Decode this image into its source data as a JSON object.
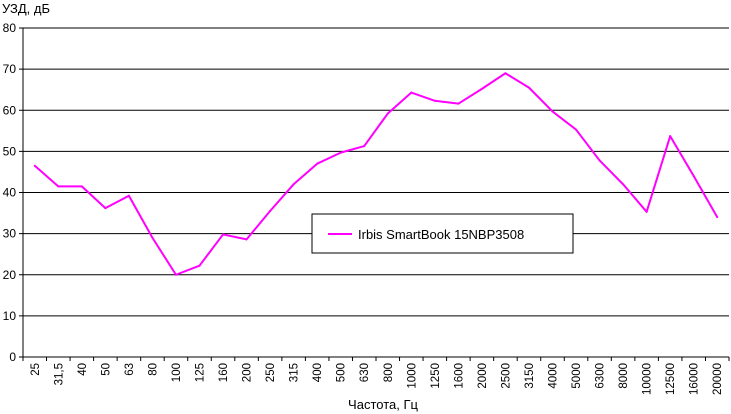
{
  "chart_data": {
    "type": "line",
    "ylabel": "УЗД, дБ",
    "xlabel": "Частота, Гц",
    "ylim": [
      0,
      80
    ],
    "yticks": [
      0,
      10,
      20,
      30,
      40,
      50,
      60,
      70,
      80
    ],
    "grid": false,
    "legend_placement": "center",
    "categories": [
      "25",
      "31,5",
      "40",
      "50",
      "63",
      "80",
      "100",
      "125",
      "160",
      "200",
      "250",
      "315",
      "400",
      "500",
      "630",
      "800",
      "1000",
      "1250",
      "1600",
      "2000",
      "2500",
      "3150",
      "4000",
      "5000",
      "6300",
      "8000",
      "10000",
      "12500",
      "16000",
      "20000"
    ],
    "series": [
      {
        "name": "Irbis SmartBook 15NBP3508",
        "color": "#ff00ff",
        "values": [
          46.5,
          41.5,
          41.5,
          36.2,
          39.2,
          29.0,
          20.0,
          22.2,
          29.8,
          28.6,
          35.5,
          42.0,
          47.0,
          49.7,
          51.3,
          59.2,
          64.3,
          62.3,
          61.6,
          65.2,
          69.0,
          65.5,
          59.7,
          55.3,
          47.8,
          42.0,
          35.3,
          53.7,
          44.0,
          34.0
        ]
      }
    ]
  }
}
